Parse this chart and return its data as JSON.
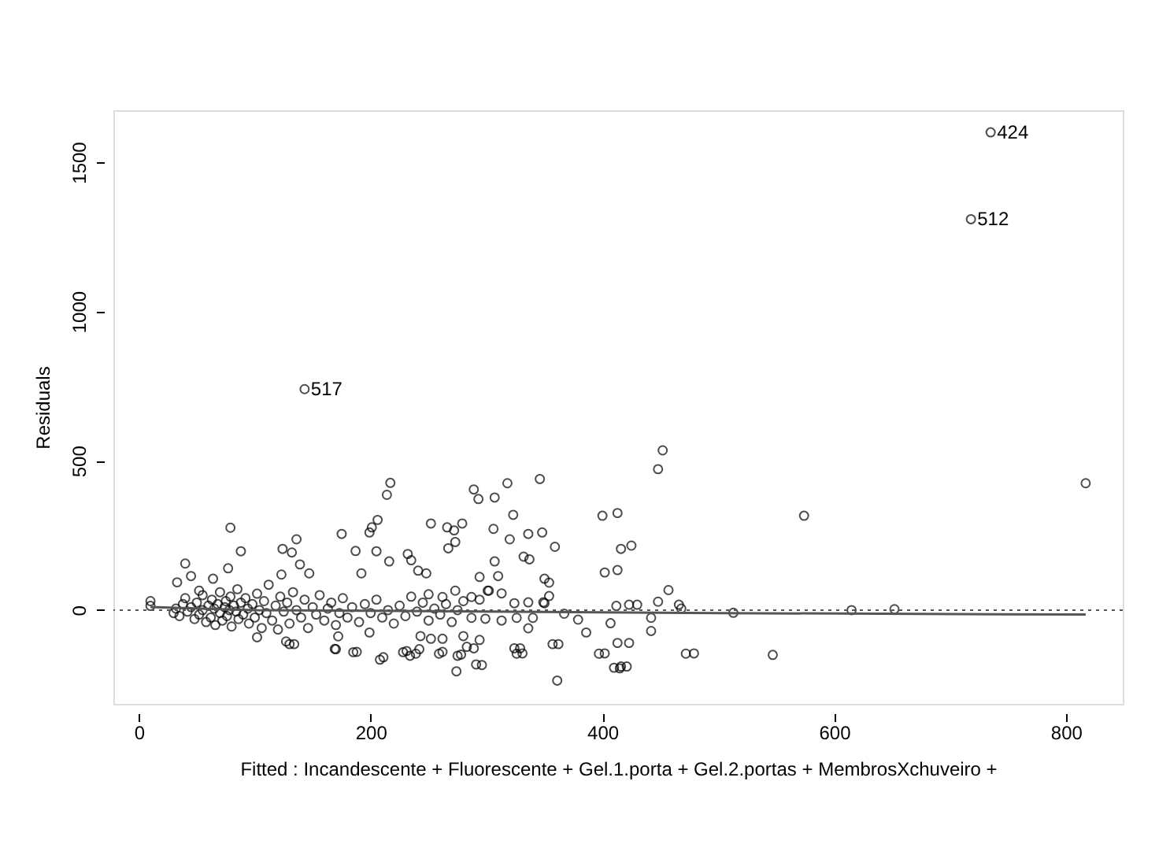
{
  "chart_data": {
    "type": "scatter",
    "xlabel": "Fitted : Incandescente + Fluorescente + Gel.1.porta + Gel.2.portas + MembrosXchuveiro +",
    "ylabel": "Residuals",
    "xlim": [
      -22,
      849
    ],
    "ylim": [
      -314,
      1674
    ],
    "xticks": [
      0,
      200,
      400,
      600,
      800
    ],
    "yticks": [
      0,
      500,
      1000,
      1500
    ],
    "grid": false,
    "marker": "circle",
    "ref_lines": [
      {
        "axis": "y",
        "value": 0,
        "line_style": "dotted",
        "color": "#555555"
      }
    ],
    "annotations": [
      {
        "text": "424",
        "x": 735,
        "y": 1600
      },
      {
        "text": "512",
        "x": 718,
        "y": 1309
      },
      {
        "text": "517",
        "x": 143,
        "y": 740
      }
    ],
    "series": [
      {
        "color": "#000000",
        "x": [
          735,
          718,
          143,
          574,
          615,
          652,
          547,
          817,
          10,
          10,
          79,
          88,
          40,
          217,
          214,
          206,
          201,
          199,
          175,
          136,
          124,
          132,
          187,
          205,
          139,
          252,
          232,
          235,
          241,
          248,
          216,
          192,
          45,
          33,
          52,
          77,
          64,
          123,
          147,
          102,
          127,
          134,
          170,
          188,
          211,
          231,
          242,
          172,
          252,
          199,
          452,
          448,
          346,
          318,
          289,
          293,
          307,
          266,
          272,
          279,
          267,
          273,
          306,
          323,
          320,
          336,
          348,
          359,
          332,
          337,
          307,
          294,
          310,
          302,
          313,
          350,
          354,
          354,
          350,
          400,
          413,
          416,
          425,
          402,
          413,
          457,
          448,
          466,
          468,
          412,
          423,
          430,
          513,
          407,
          442,
          442,
          367,
          379,
          386,
          402,
          413,
          423,
          416,
          421,
          479,
          362,
          329,
          331,
          336,
          313,
          299,
          287,
          326,
          340,
          349,
          243,
          262,
          280,
          289,
          294,
          278,
          262,
          296,
          250,
          262,
          273,
          287,
          294,
          301,
          336,
          324,
          361,
          274,
          291,
          208,
          410,
          415,
          472,
          397,
          324,
          326,
          228,
          234,
          239,
          259,
          275,
          283,
          185,
          169,
          130,
          357,
          30,
          32,
          35,
          38,
          40,
          42,
          45,
          48,
          50,
          52,
          55,
          55,
          58,
          60,
          62,
          63,
          65,
          66,
          68,
          70,
          70,
          72,
          74,
          75,
          76,
          78,
          79,
          80,
          82,
          84,
          85,
          86,
          88,
          90,
          92,
          94,
          95,
          98,
          100,
          102,
          104,
          106,
          108,
          110,
          112,
          115,
          118,
          120,
          122,
          125,
          128,
          130,
          133,
          136,
          140,
          143,
          146,
          150,
          153,
          156,
          160,
          163,
          166,
          170,
          173,
          176,
          180,
          184,
          190,
          195,
          200,
          205,
          210,
          215,
          220,
          225,
          230,
          235,
          240,
          245,
          250,
          255,
          260,
          265,
          270,
          275,
          280
        ],
        "values": [
          1600,
          1309,
          740,
          316,
          0,
          3,
          -150,
          425,
          30,
          14,
          276,
          197,
          156,
          426,
          386,
          302,
          277,
          260,
          255,
          237,
          205,
          193,
          198,
          197,
          153,
          290,
          188,
          167,
          132,
          123,
          163,
          123,
          114,
          93,
          65,
          140,
          105,
          119,
          123,
          -91,
          -105,
          -114,
          -131,
          -140,
          -158,
          -137,
          -131,
          -88,
          -96,
          -75,
          535,
          472,
          439,
          425,
          404,
          372,
          377,
          277,
          267,
          290,
          207,
          228,
          272,
          319,
          237,
          255,
          260,
          212,
          179,
          170,
          163,
          111,
          114,
          65,
          56,
          105,
          92,
          47,
          23,
          316,
          325,
          205,
          216,
          126,
          134,
          67,
          28,
          18,
          5,
          14,
          18,
          18,
          -9,
          -44,
          -26,
          -70,
          -12,
          -32,
          -75,
          -145,
          -110,
          -110,
          -189,
          -189,
          -145,
          -114,
          -128,
          -145,
          -61,
          -35,
          -29,
          -26,
          -26,
          -26,
          26,
          -87,
          -96,
          -87,
          -128,
          -100,
          -149,
          -140,
          -184,
          53,
          44,
          65,
          44,
          35,
          65,
          26,
          23,
          -236,
          -205,
          -182,
          -166,
          -193,
          -195,
          -146,
          -146,
          -128,
          -146,
          -141,
          -153,
          -146,
          -146,
          -153,
          -123,
          -141,
          -130,
          -114,
          -114,
          -10,
          5,
          -20,
          20,
          40,
          -5,
          10,
          -30,
          25,
          -15,
          0,
          50,
          -40,
          15,
          -25,
          35,
          5,
          -50,
          20,
          -10,
          60,
          -35,
          10,
          30,
          -20,
          0,
          45,
          -55,
          15,
          -5,
          70,
          -30,
          25,
          -15,
          40,
          5,
          -45,
          20,
          -25,
          55,
          0,
          -60,
          30,
          -10,
          85,
          -35,
          15,
          -65,
          45,
          -5,
          25,
          -45,
          60,
          0,
          -25,
          35,
          -60,
          10,
          -15,
          50,
          -35,
          5,
          25,
          -50,
          -10,
          40,
          -25,
          10,
          -40,
          20,
          -10,
          35,
          -25,
          0,
          -45,
          15,
          -20,
          45,
          -5,
          25,
          -35,
          5,
          -15,
          20,
          -40,
          0,
          30
        ]
      },
      {
        "type": "line",
        "color": "#555555",
        "line_style": "solid",
        "marker": "none",
        "x": [
          10,
          100,
          300,
          500,
          817
        ],
        "values": [
          10,
          0,
          -5,
          -10,
          -15
        ]
      }
    ]
  }
}
